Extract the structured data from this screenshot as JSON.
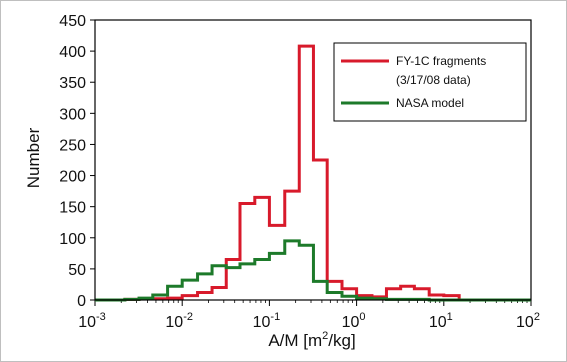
{
  "chart_data": {
    "type": "line",
    "style": "step-histogram",
    "xlabel": "A/M [m",
    "xlabel_sup": "2",
    "xlabel_tail": "/kg]",
    "ylabel": "Number",
    "x_scale": "log",
    "xlim": [
      0.001,
      100
    ],
    "ylim": [
      0,
      450
    ],
    "y_ticks": [
      "0",
      "50",
      "100",
      "150",
      "200",
      "250",
      "300",
      "350",
      "400",
      "450"
    ],
    "x_ticks": [
      {
        "base": "10",
        "exp": "-3"
      },
      {
        "base": "10",
        "exp": "-2"
      },
      {
        "base": "10",
        "exp": "-1"
      },
      {
        "base": "10",
        "exp": "0"
      },
      {
        "base": "10",
        "exp": "1"
      },
      {
        "base": "10",
        "exp": "2"
      }
    ],
    "bin_edges": [
      0.001,
      0.0015,
      0.0022,
      0.0032,
      0.0046,
      0.0068,
      0.01,
      0.015,
      0.022,
      0.032,
      0.046,
      0.068,
      0.1,
      0.15,
      0.22,
      0.32,
      0.46,
      0.68,
      1.0,
      1.5,
      2.2,
      3.2,
      4.6,
      6.8,
      10,
      15,
      22,
      32,
      100
    ],
    "grid": false,
    "legend_position": "top-right",
    "series": [
      {
        "name": "FY-1C fragments",
        "name_line2": "(3/17/08 data)",
        "color": "#d81a2b",
        "values": [
          0,
          0,
          1,
          2,
          2,
          3,
          7,
          12,
          20,
          65,
          155,
          165,
          120,
          175,
          408,
          225,
          30,
          18,
          7,
          5,
          18,
          22,
          18,
          8,
          7,
          0,
          0,
          0
        ]
      },
      {
        "name": "NASA model",
        "color": "#1d7a2a",
        "values": [
          0,
          0,
          1,
          3,
          8,
          22,
          32,
          42,
          55,
          52,
          58,
          65,
          75,
          95,
          88,
          30,
          12,
          6,
          3,
          2,
          1,
          1,
          1,
          0,
          0,
          0,
          0,
          0
        ]
      }
    ]
  }
}
